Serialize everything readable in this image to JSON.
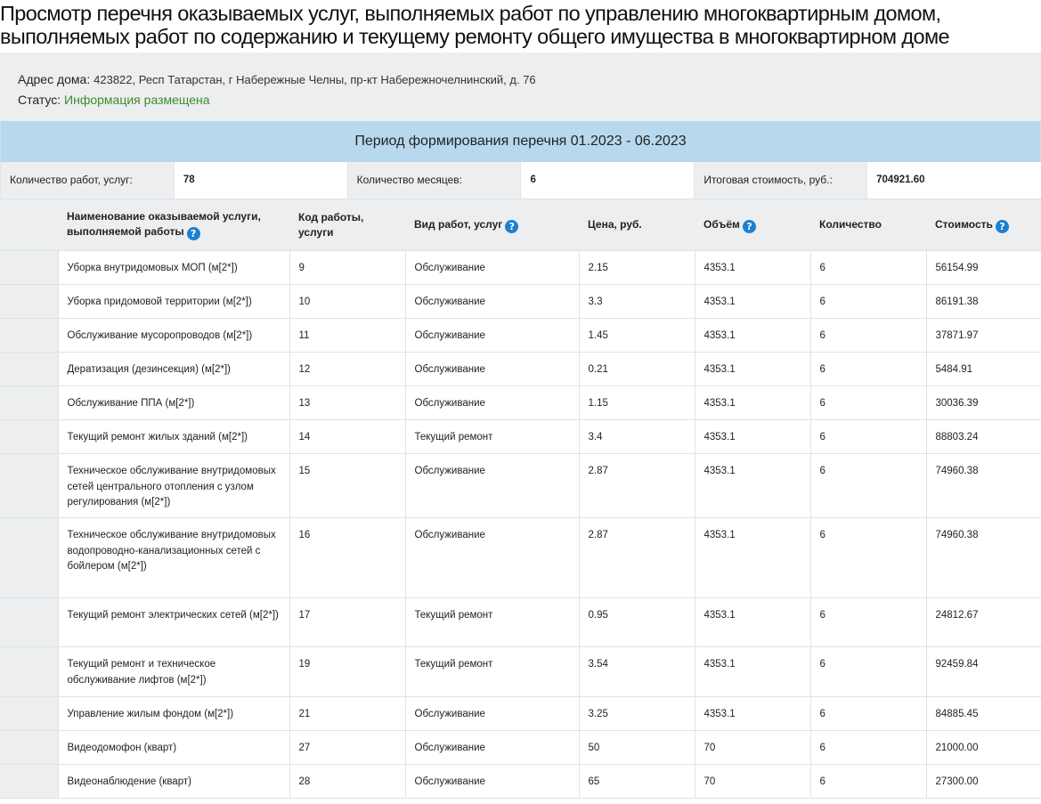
{
  "title_line1": "Просмотр перечня оказываемых услуг, выполняемых работ по управлению многоквартирным домом,",
  "title_line2": "выполняемых работ по содержанию и текущему ремонту общего имущества в многоквартирном доме",
  "info": {
    "address_label": "Адрес дома:",
    "address_value": "423822, Респ Татарстан, г Набережные Челны, пр-кт Набережночелнинский, д. 76",
    "status_label": "Статус:",
    "status_value": "Информация размещена"
  },
  "period": "Период формирования перечня 01.2023 - 06.2023",
  "summary": {
    "works_label": "Количество работ, услуг:",
    "works_value": "78",
    "months_label": "Количество месяцев:",
    "months_value": "6",
    "total_label": "Итоговая стоимость, руб.:",
    "total_value": "704921.60"
  },
  "columns": {
    "name": "Наименование оказываемой услуги, выполняемой работы",
    "code": "Код работы, услуги",
    "type": "Вид работ, услуг",
    "price": "Цена, руб.",
    "volume": "Объём",
    "qty": "Количество",
    "cost": "Стоимость"
  },
  "rows": [
    {
      "name": "Уборка внутридомовых МОП (м[2*])",
      "code": "9",
      "type": "Обслуживание",
      "price": "2.15",
      "volume": "4353.1",
      "qty": "6",
      "cost": "56154.99"
    },
    {
      "name": "Уборка придомовой территории (м[2*])",
      "code": "10",
      "type": "Обслуживание",
      "price": "3.3",
      "volume": "4353.1",
      "qty": "6",
      "cost": "86191.38"
    },
    {
      "name": "Обслуживание мусоропроводов (м[2*])",
      "code": "11",
      "type": "Обслуживание",
      "price": "1.45",
      "volume": "4353.1",
      "qty": "6",
      "cost": "37871.97"
    },
    {
      "name": "Дератизация (дезинсекция) (м[2*])",
      "code": "12",
      "type": "Обслуживание",
      "price": "0.21",
      "volume": "4353.1",
      "qty": "6",
      "cost": "5484.91"
    },
    {
      "name": "Обслуживание ППА (м[2*])",
      "code": "13",
      "type": "Обслуживание",
      "price": "1.15",
      "volume": "4353.1",
      "qty": "6",
      "cost": "30036.39"
    },
    {
      "name": "Текущий ремонт жилых зданий (м[2*])",
      "code": "14",
      "type": "Текущий ремонт",
      "price": "3.4",
      "volume": "4353.1",
      "qty": "6",
      "cost": "88803.24"
    },
    {
      "name": "Техническое обслуживание внутридомовых сетей центрального отопления с узлом регулирования (м[2*])",
      "code": "15",
      "type": "Обслуживание",
      "price": "2.87",
      "volume": "4353.1",
      "qty": "6",
      "cost": "74960.38"
    },
    {
      "name": "Техническое обслуживание внутридомовых водопроводно-канализационных сетей с бойлером (м[2*])",
      "code": "16",
      "type": "Обслуживание",
      "price": "2.87",
      "volume": "4353.1",
      "qty": "6",
      "cost": "74960.38"
    },
    {
      "name": "Текущий ремонт электрических сетей (м[2*])",
      "code": "17",
      "type": "Текущий ремонт",
      "price": "0.95",
      "volume": "4353.1",
      "qty": "6",
      "cost": "24812.67"
    },
    {
      "name": "Текущий ремонт и техническое обслуживание лифтов (м[2*])",
      "code": "19",
      "type": "Текущий ремонт",
      "price": "3.54",
      "volume": "4353.1",
      "qty": "6",
      "cost": "92459.84"
    },
    {
      "name": "Управление жилым фондом (м[2*])",
      "code": "21",
      "type": "Обслуживание",
      "price": "3.25",
      "volume": "4353.1",
      "qty": "6",
      "cost": "84885.45"
    },
    {
      "name": "Видеодомофон (кварт)",
      "code": "27",
      "type": "Обслуживание",
      "price": "50",
      "volume": "70",
      "qty": "6",
      "cost": "21000.00"
    },
    {
      "name": "Видеонаблюдение (кварт)",
      "code": "28",
      "type": "Обслуживание",
      "price": "65",
      "volume": "70",
      "qty": "6",
      "cost": "27300.00"
    }
  ],
  "icons": {
    "help": "question-circle-icon"
  },
  "colors": {
    "period_bg": "#b8d8ee",
    "status_green": "#3f8b2e",
    "help_icon_blue": "#1e7fd0",
    "panel_gray": "#eceeef"
  }
}
